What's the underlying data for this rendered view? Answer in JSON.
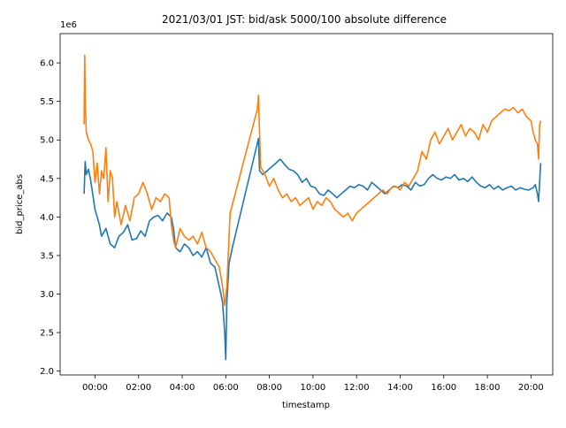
{
  "chart_data": {
    "type": "line",
    "title": "2021/03/01 JST: bid/ask 5000/100 absolute difference",
    "xlabel": "timestamp",
    "ylabel": "bid_price_abs",
    "y_offset_text": "1e6",
    "x_unit": "hours",
    "xlim": [
      -1.6,
      21.0
    ],
    "ylim": [
      1.95,
      6.38
    ],
    "x_ticks": [
      {
        "value": 0,
        "label": "00:00"
      },
      {
        "value": 2,
        "label": "02:00"
      },
      {
        "value": 4,
        "label": "04:00"
      },
      {
        "value": 6,
        "label": "06:00"
      },
      {
        "value": 8,
        "label": "08:00"
      },
      {
        "value": 10,
        "label": "10:00"
      },
      {
        "value": 12,
        "label": "12:00"
      },
      {
        "value": 14,
        "label": "14:00"
      },
      {
        "value": 16,
        "label": "16:00"
      },
      {
        "value": 18,
        "label": "18:00"
      },
      {
        "value": 20,
        "label": "20:00"
      }
    ],
    "y_ticks": [
      {
        "value": 2.0,
        "label": "2.0"
      },
      {
        "value": 2.5,
        "label": "2.5"
      },
      {
        "value": 3.0,
        "label": "3.0"
      },
      {
        "value": 3.5,
        "label": "3.5"
      },
      {
        "value": 4.0,
        "label": "4.0"
      },
      {
        "value": 4.5,
        "label": "4.5"
      },
      {
        "value": 5.0,
        "label": "5.0"
      },
      {
        "value": 5.5,
        "label": "5.5"
      },
      {
        "value": 6.0,
        "label": "6.0"
      }
    ],
    "grid": false,
    "legend": "none",
    "series": [
      {
        "color": "#1f77b4",
        "x": [
          -0.5,
          -0.45,
          -0.4,
          -0.3,
          -0.2,
          0.0,
          0.2,
          0.3,
          0.5,
          0.7,
          0.9,
          1.1,
          1.3,
          1.5,
          1.7,
          1.9,
          2.1,
          2.3,
          2.5,
          2.7,
          2.9,
          3.1,
          3.3,
          3.5,
          3.6,
          3.7,
          3.9,
          4.1,
          4.3,
          4.5,
          4.7,
          4.9,
          5.1,
          5.3,
          5.5,
          5.7,
          5.85,
          5.95,
          6.0,
          6.05,
          6.15,
          6.3,
          7.5,
          7.55,
          7.7,
          7.9,
          8.1,
          8.3,
          8.5,
          8.7,
          8.9,
          9.1,
          9.3,
          9.5,
          9.7,
          9.9,
          10.1,
          10.3,
          10.5,
          10.7,
          10.9,
          11.1,
          11.3,
          11.5,
          11.7,
          11.9,
          12.1,
          12.3,
          12.5,
          12.7,
          12.9,
          13.1,
          13.3,
          13.5,
          13.7,
          13.9,
          14.1,
          14.3,
          14.5,
          14.7,
          14.9,
          15.1,
          15.3,
          15.5,
          15.7,
          15.9,
          16.1,
          16.3,
          16.5,
          16.7,
          16.9,
          17.1,
          17.3,
          17.5,
          17.7,
          17.9,
          18.1,
          18.3,
          18.5,
          18.7,
          18.9,
          19.1,
          19.3,
          19.5,
          19.7,
          19.9,
          20.1,
          20.2,
          20.3,
          20.35,
          20.4,
          20.45
        ],
        "y": [
          4.3,
          4.72,
          4.55,
          4.62,
          4.48,
          4.1,
          3.9,
          3.75,
          3.85,
          3.65,
          3.6,
          3.75,
          3.8,
          3.9,
          3.7,
          3.72,
          3.82,
          3.75,
          3.95,
          4.0,
          4.02,
          3.95,
          4.05,
          4.0,
          3.85,
          3.6,
          3.55,
          3.65,
          3.6,
          3.5,
          3.55,
          3.48,
          3.6,
          3.4,
          3.35,
          3.1,
          2.9,
          2.5,
          2.15,
          2.9,
          3.4,
          3.6,
          5.02,
          4.6,
          4.55,
          4.6,
          4.65,
          4.7,
          4.75,
          4.68,
          4.62,
          4.6,
          4.55,
          4.45,
          4.5,
          4.4,
          4.38,
          4.3,
          4.28,
          4.35,
          4.3,
          4.25,
          4.3,
          4.35,
          4.4,
          4.38,
          4.42,
          4.4,
          4.35,
          4.45,
          4.4,
          4.35,
          4.3,
          4.35,
          4.4,
          4.38,
          4.42,
          4.4,
          4.35,
          4.45,
          4.4,
          4.42,
          4.5,
          4.55,
          4.5,
          4.48,
          4.52,
          4.5,
          4.55,
          4.48,
          4.5,
          4.46,
          4.52,
          4.45,
          4.4,
          4.38,
          4.42,
          4.36,
          4.4,
          4.35,
          4.38,
          4.4,
          4.35,
          4.38,
          4.36,
          4.35,
          4.38,
          4.42,
          4.3,
          4.2,
          4.45,
          4.7
        ]
      },
      {
        "color": "#ff7f0e",
        "x": [
          -0.5,
          -0.47,
          -0.44,
          -0.4,
          -0.3,
          -0.2,
          -0.1,
          0.0,
          0.1,
          0.2,
          0.3,
          0.4,
          0.5,
          0.6,
          0.7,
          0.8,
          0.9,
          1.0,
          1.2,
          1.4,
          1.6,
          1.8,
          2.0,
          2.2,
          2.4,
          2.6,
          2.8,
          3.0,
          3.2,
          3.4,
          3.5,
          3.6,
          3.7,
          3.9,
          4.1,
          4.3,
          4.5,
          4.7,
          4.9,
          5.1,
          5.3,
          5.5,
          5.7,
          5.85,
          5.95,
          6.05,
          6.2,
          7.45,
          7.5,
          7.55,
          7.6,
          7.8,
          8.0,
          8.2,
          8.4,
          8.6,
          8.8,
          9.0,
          9.2,
          9.4,
          9.6,
          9.8,
          10.0,
          10.2,
          10.4,
          10.6,
          10.8,
          11.0,
          11.2,
          11.4,
          11.6,
          11.8,
          12.0,
          12.2,
          12.4,
          12.6,
          12.8,
          13.0,
          13.2,
          13.4,
          13.6,
          13.8,
          14.0,
          14.2,
          14.4,
          14.6,
          14.8,
          15.0,
          15.2,
          15.4,
          15.6,
          15.8,
          16.0,
          16.2,
          16.4,
          16.6,
          16.8,
          17.0,
          17.2,
          17.4,
          17.6,
          17.8,
          18.0,
          18.2,
          18.4,
          18.6,
          18.8,
          19.0,
          19.2,
          19.4,
          19.6,
          19.8,
          20.0,
          20.1,
          20.2,
          20.3,
          20.35,
          20.4,
          20.45
        ],
        "y": [
          5.2,
          6.1,
          5.4,
          5.1,
          5.0,
          4.95,
          4.85,
          4.45,
          4.7,
          4.3,
          4.6,
          4.5,
          4.9,
          4.2,
          4.6,
          4.5,
          4.0,
          4.2,
          3.9,
          4.15,
          3.95,
          4.25,
          4.3,
          4.45,
          4.3,
          4.1,
          4.25,
          4.2,
          4.3,
          4.25,
          3.9,
          3.7,
          3.6,
          3.85,
          3.75,
          3.7,
          3.75,
          3.65,
          3.8,
          3.6,
          3.55,
          3.45,
          3.35,
          3.1,
          2.85,
          3.1,
          4.05,
          5.4,
          5.58,
          5.1,
          4.65,
          4.55,
          4.4,
          4.5,
          4.35,
          4.25,
          4.3,
          4.2,
          4.25,
          4.15,
          4.2,
          4.25,
          4.1,
          4.2,
          4.15,
          4.25,
          4.2,
          4.1,
          4.05,
          4.0,
          4.05,
          3.95,
          4.05,
          4.1,
          4.15,
          4.2,
          4.25,
          4.3,
          4.35,
          4.3,
          4.38,
          4.4,
          4.35,
          4.45,
          4.4,
          4.5,
          4.6,
          4.85,
          4.75,
          5.0,
          5.1,
          4.95,
          5.05,
          5.15,
          5.0,
          5.1,
          5.2,
          5.05,
          5.15,
          5.1,
          5.0,
          5.2,
          5.1,
          5.25,
          5.3,
          5.35,
          5.4,
          5.38,
          5.42,
          5.35,
          5.4,
          5.3,
          5.25,
          5.1,
          5.0,
          4.95,
          4.75,
          5.2,
          5.25
        ]
      }
    ]
  }
}
